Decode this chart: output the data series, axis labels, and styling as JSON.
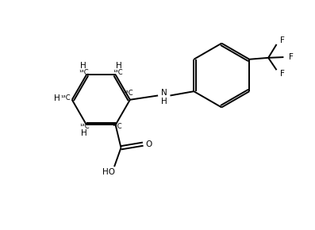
{
  "background": "#ffffff",
  "line_color": "#000000",
  "line_width": 1.4,
  "font_size": 7.5,
  "figsize": [
    3.97,
    2.9
  ],
  "dpi": 100,
  "xlim": [
    0,
    10
  ],
  "ylim": [
    0,
    7.5
  ]
}
